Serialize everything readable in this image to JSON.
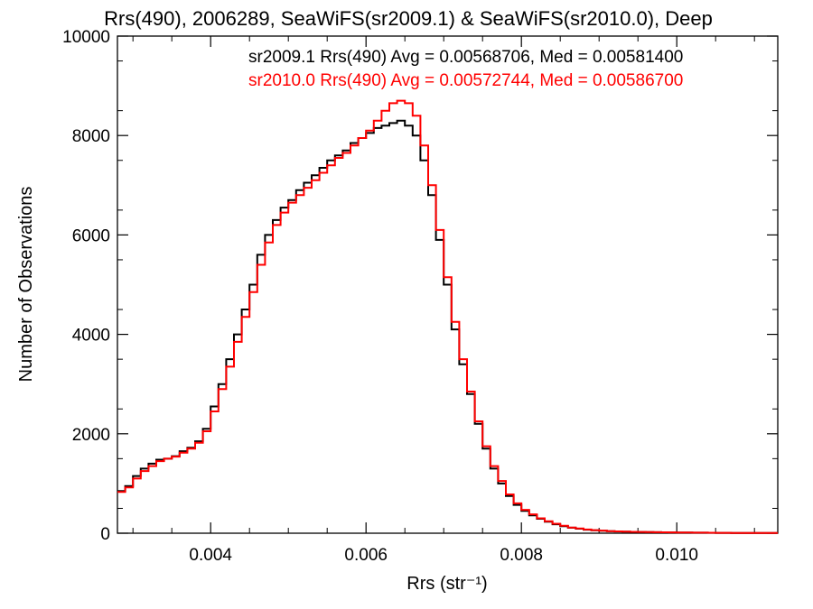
{
  "chart_data": {
    "type": "line",
    "step": true,
    "title": "Rrs(490), 2006289, SeaWiFS(sr2009.1) & SeaWiFS(sr2010.0), Deep",
    "xlabel": "Rrs (str⁻¹)",
    "ylabel": "Number of Observations",
    "xlim": [
      0.0028,
      0.0113
    ],
    "ylim": [
      0,
      10000
    ],
    "xticks": [
      0.004,
      0.006,
      0.008,
      0.01
    ],
    "xtick_labels": [
      "0.004",
      "0.006",
      "0.008",
      "0.010"
    ],
    "yticks": [
      0,
      2000,
      4000,
      6000,
      8000,
      10000
    ],
    "ytick_labels": [
      "0",
      "2000",
      "4000",
      "6000",
      "8000",
      "10000"
    ],
    "colors": {
      "sr2009.1": "#000000",
      "sr2010.0": "#ff0000"
    },
    "annotations": [
      {
        "text": "sr2009.1 Rrs(490) Avg = 0.00568706, Med = 0.00581400",
        "color": "#000000"
      },
      {
        "text": "sr2010.0 Rrs(490) Avg = 0.00572744, Med = 0.00586700",
        "color": "#ff0000"
      }
    ],
    "series": [
      {
        "color": "#000000",
        "x": [
          0.0028,
          0.0029,
          0.003,
          0.0031,
          0.0032,
          0.0033,
          0.0034,
          0.0035,
          0.0036,
          0.0037,
          0.0038,
          0.0039,
          0.004,
          0.0041,
          0.0042,
          0.0043,
          0.0044,
          0.0045,
          0.0046,
          0.0047,
          0.0048,
          0.0049,
          0.005,
          0.0051,
          0.0052,
          0.0053,
          0.0054,
          0.0055,
          0.0056,
          0.0057,
          0.0058,
          0.0059,
          0.006,
          0.0061,
          0.0062,
          0.0063,
          0.0064,
          0.0065,
          0.0066,
          0.0067,
          0.0068,
          0.0069,
          0.007,
          0.0071,
          0.0072,
          0.0073,
          0.0074,
          0.0075,
          0.0076,
          0.0077,
          0.0078,
          0.0079,
          0.008,
          0.0081,
          0.0082,
          0.0083,
          0.0084,
          0.0085,
          0.0086,
          0.0087,
          0.0088,
          0.0089,
          0.009,
          0.0091,
          0.0092,
          0.0093,
          0.0094,
          0.0095,
          0.0096,
          0.0097,
          0.0098,
          0.0099,
          0.01,
          0.0101,
          0.0102,
          0.0103,
          0.0104,
          0.0105,
          0.0106,
          0.0107,
          0.0108,
          0.0109,
          0.011,
          0.0111,
          0.0112
        ],
        "values": [
          850,
          950,
          1150,
          1300,
          1400,
          1480,
          1500,
          1550,
          1650,
          1720,
          1850,
          2100,
          2550,
          3000,
          3500,
          4000,
          4500,
          5000,
          5600,
          6000,
          6300,
          6550,
          6700,
          6900,
          7050,
          7200,
          7350,
          7500,
          7600,
          7700,
          7850,
          7950,
          8050,
          8150,
          8200,
          8250,
          8300,
          8200,
          8000,
          7500,
          6800,
          5900,
          5000,
          4100,
          3400,
          2800,
          2200,
          1700,
          1300,
          1000,
          750,
          570,
          450,
          360,
          290,
          230,
          180,
          140,
          110,
          90,
          70,
          60,
          50,
          40,
          35,
          30,
          28,
          25,
          22,
          20,
          18,
          16,
          14,
          12,
          11,
          10,
          9,
          8,
          7,
          6,
          6,
          5,
          5,
          4,
          4
        ]
      },
      {
        "color": "#ff0000",
        "x": [
          0.0028,
          0.0029,
          0.003,
          0.0031,
          0.0032,
          0.0033,
          0.0034,
          0.0035,
          0.0036,
          0.0037,
          0.0038,
          0.0039,
          0.004,
          0.0041,
          0.0042,
          0.0043,
          0.0044,
          0.0045,
          0.0046,
          0.0047,
          0.0048,
          0.0049,
          0.005,
          0.0051,
          0.0052,
          0.0053,
          0.0054,
          0.0055,
          0.0056,
          0.0057,
          0.0058,
          0.0059,
          0.006,
          0.0061,
          0.0062,
          0.0063,
          0.0064,
          0.0065,
          0.0066,
          0.0067,
          0.0068,
          0.0069,
          0.007,
          0.0071,
          0.0072,
          0.0073,
          0.0074,
          0.0075,
          0.0076,
          0.0077,
          0.0078,
          0.0079,
          0.008,
          0.0081,
          0.0082,
          0.0083,
          0.0084,
          0.0085,
          0.0086,
          0.0087,
          0.0088,
          0.0089,
          0.009,
          0.0091,
          0.0092,
          0.0093,
          0.0094,
          0.0095,
          0.0096,
          0.0097,
          0.0098,
          0.0099,
          0.01,
          0.0101,
          0.0102,
          0.0103,
          0.0104,
          0.0105,
          0.0106,
          0.0107,
          0.0108,
          0.0109,
          0.011,
          0.0111,
          0.0112
        ],
        "values": [
          830,
          920,
          1100,
          1250,
          1350,
          1450,
          1500,
          1540,
          1620,
          1700,
          1820,
          2050,
          2450,
          2900,
          3350,
          3850,
          4350,
          4850,
          5400,
          5850,
          6200,
          6450,
          6650,
          6800,
          6950,
          7100,
          7250,
          7400,
          7550,
          7650,
          7800,
          7950,
          8100,
          8300,
          8500,
          8650,
          8700,
          8650,
          8400,
          7800,
          7000,
          6100,
          5150,
          4250,
          3500,
          2850,
          2250,
          1750,
          1350,
          1050,
          780,
          600,
          470,
          380,
          300,
          240,
          190,
          150,
          115,
          95,
          75,
          62,
          52,
          42,
          36,
          31,
          28,
          25,
          22,
          20,
          18,
          16,
          14,
          12,
          11,
          10,
          9,
          8,
          7,
          6,
          6,
          5,
          5,
          4,
          4
        ]
      }
    ]
  }
}
